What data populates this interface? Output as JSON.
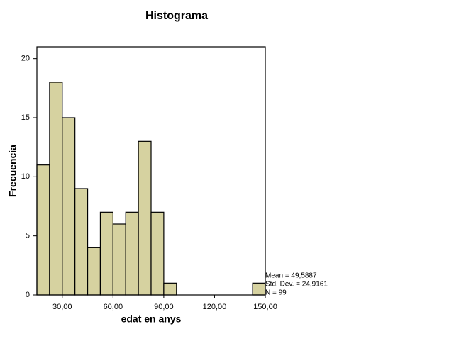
{
  "chart_data": {
    "type": "histogram",
    "title": "Histograma",
    "x_label": "edat en anys",
    "y_label": "Frecuencia",
    "bins": [
      15,
      22.5,
      30,
      37.5,
      45,
      52.5,
      60,
      67.5,
      75,
      82.5,
      90,
      97.5,
      105,
      112.5,
      120,
      127.5,
      135,
      142.5,
      150
    ],
    "values": [
      11,
      18,
      15,
      9,
      4,
      7,
      6,
      7,
      13,
      7,
      1,
      0,
      0,
      0,
      0,
      0,
      0,
      1
    ],
    "color": "#d6d2a0",
    "xlim": [
      15,
      150
    ],
    "xticks": [
      {
        "value": 30,
        "label": "30,00"
      },
      {
        "value": 60,
        "label": "60,00"
      },
      {
        "value": 90,
        "label": "90,00"
      },
      {
        "value": 120,
        "label": "120,00"
      },
      {
        "value": 150,
        "label": "150,00"
      }
    ],
    "ylim": [
      0,
      21
    ],
    "yticks": [
      0,
      5,
      10,
      15,
      20
    ],
    "annotations": [
      "Mean = 49,5887",
      "Std. Dev. = 24,9161",
      "N = 99"
    ]
  }
}
